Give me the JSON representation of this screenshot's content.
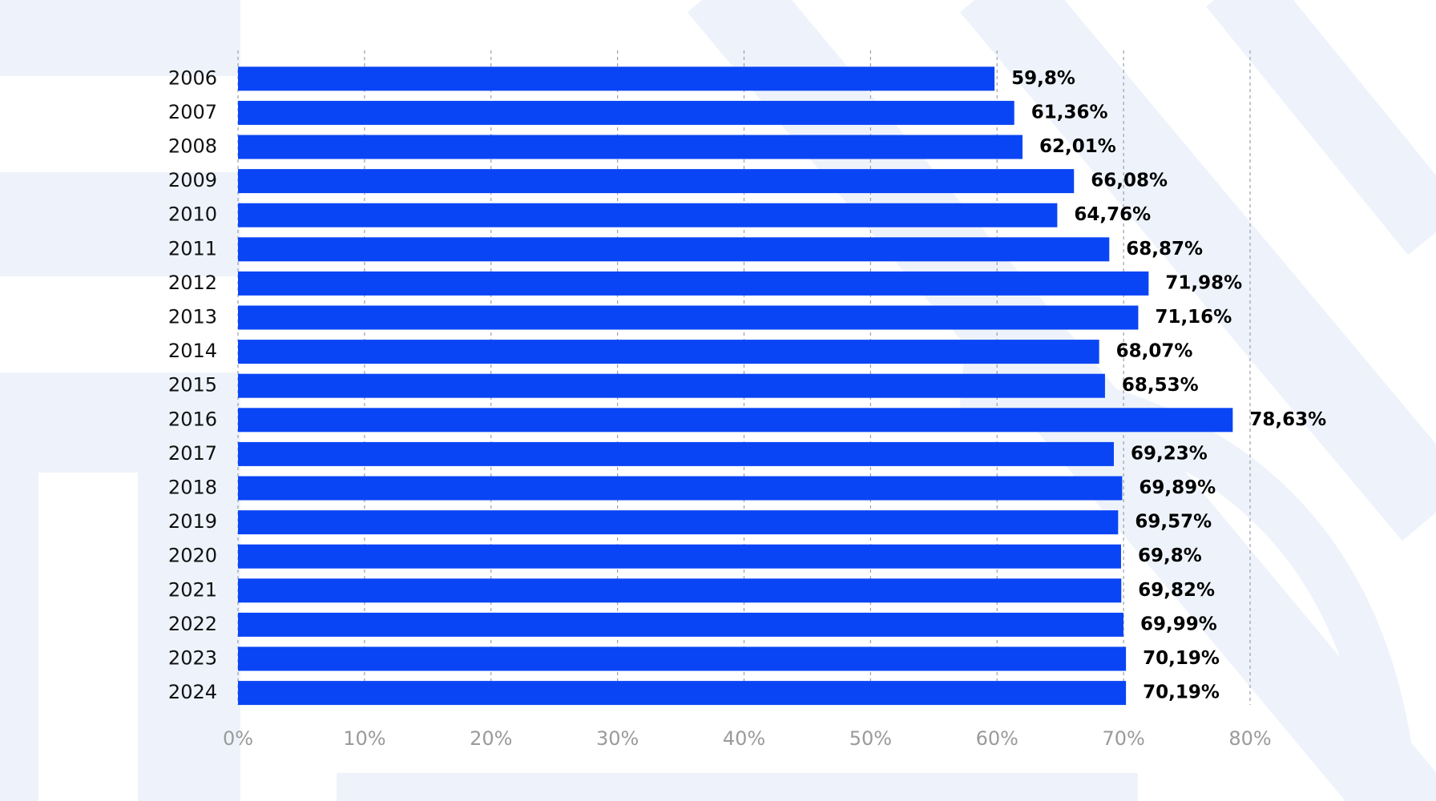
{
  "chart_data": {
    "type": "bar",
    "orientation": "horizontal",
    "categories": [
      "2006",
      "2007",
      "2008",
      "2009",
      "2010",
      "2011",
      "2012",
      "2013",
      "2014",
      "2015",
      "2016",
      "2017",
      "2018",
      "2019",
      "2020",
      "2021",
      "2022",
      "2023",
      "2024"
    ],
    "values": [
      59.8,
      61.36,
      62.01,
      66.08,
      64.76,
      68.87,
      71.98,
      71.16,
      68.07,
      68.53,
      78.63,
      69.23,
      69.89,
      69.57,
      69.8,
      69.82,
      69.99,
      70.19,
      70.19
    ],
    "value_labels": [
      "59,8%",
      "61,36%",
      "62,01%",
      "66,08%",
      "64,76%",
      "68,87%",
      "71,98%",
      "71,16%",
      "68,07%",
      "68,53%",
      "78,63%",
      "69,23%",
      "69,89%",
      "69,57%",
      "69,8%",
      "69,82%",
      "69,99%",
      "70,19%",
      "70,19%"
    ],
    "color": "#0a45f5",
    "xlim": [
      0,
      80
    ],
    "xticks": [
      {
        "value": 0,
        "label": "0%"
      },
      {
        "value": 10,
        "label": "10%"
      },
      {
        "value": 20,
        "label": "20%"
      },
      {
        "value": 30,
        "label": "30%"
      },
      {
        "value": 40,
        "label": "40%"
      },
      {
        "value": 50,
        "label": "50%"
      },
      {
        "value": 60,
        "label": "60%"
      },
      {
        "value": 70,
        "label": "70%"
      },
      {
        "value": 80,
        "label": "80%"
      }
    ],
    "grid": true
  }
}
